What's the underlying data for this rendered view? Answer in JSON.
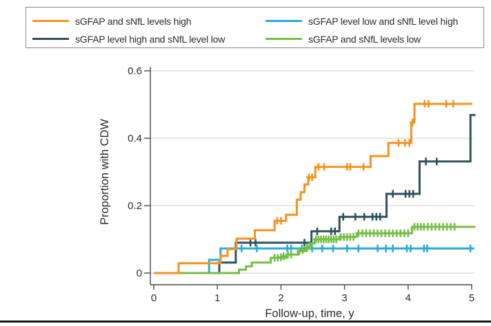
{
  "figure": {
    "background": "#ffffff",
    "bottom_rule_color": "#151515"
  },
  "legend": {
    "border_color": "#8a8a8a",
    "position": "top",
    "items": [
      {
        "label": "sGFAP and sNfL levels high",
        "color": "#F6921E"
      },
      {
        "label": "sGFAP level low and sNfL level high",
        "color": "#29A9E1"
      },
      {
        "label": "sGFAP level high and sNfL level low",
        "color": "#2F505E"
      },
      {
        "label": "sGFAP and sNfL levels low",
        "color": "#74BE44"
      }
    ]
  },
  "chart_data": {
    "type": "line",
    "subtype": "kaplan-meier-step",
    "title": "",
    "xlabel": "Follow-up, time, y",
    "ylabel": "Proportion with CDW",
    "xlim": [
      0,
      5
    ],
    "ylim": [
      0,
      0.6
    ],
    "xticks": [
      0,
      1,
      2,
      3,
      4,
      5
    ],
    "xtick_labels": [
      "0",
      "1",
      "2",
      "3",
      "4",
      "5"
    ],
    "yticks": [
      0,
      0.2,
      0.4,
      0.6
    ],
    "ytick_labels": [
      "0",
      "0.2",
      "0.4",
      "0.6"
    ],
    "grid": "horizontal",
    "grid_color": "#dedede",
    "axis_color": "#474747",
    "censor_marker": "plus",
    "series": [
      {
        "name": "sGFAP level high and sNfL level low",
        "color": "#2F505E",
        "end_x": 5.06,
        "steps": [
          [
            0,
            0
          ],
          [
            1.03,
            0.031
          ],
          [
            1.29,
            0.09
          ],
          [
            2.48,
            0.124
          ],
          [
            2.92,
            0.167
          ],
          [
            3.66,
            0.235
          ],
          [
            4.18,
            0.331
          ],
          [
            4.98,
            0.469
          ]
        ],
        "censors": [
          [
            1.52,
            0.09
          ],
          [
            1.6,
            0.09
          ],
          [
            2.37,
            0.09
          ],
          [
            2.57,
            0.124
          ],
          [
            2.79,
            0.124
          ],
          [
            2.85,
            0.124
          ],
          [
            2.98,
            0.167
          ],
          [
            3.17,
            0.167
          ],
          [
            3.31,
            0.167
          ],
          [
            3.44,
            0.167
          ],
          [
            3.5,
            0.167
          ],
          [
            3.56,
            0.167
          ],
          [
            3.76,
            0.235
          ],
          [
            3.96,
            0.235
          ],
          [
            4.02,
            0.235
          ],
          [
            4.08,
            0.235
          ],
          [
            4.28,
            0.331
          ],
          [
            4.45,
            0.331
          ]
        ]
      },
      {
        "name": "sGFAP level low and sNfL level high",
        "color": "#29A9E1",
        "end_x": 5.04,
        "steps": [
          [
            0,
            0
          ],
          [
            0.87,
            0.039
          ],
          [
            1.05,
            0.073
          ]
        ],
        "censors": [
          [
            1.38,
            0.073
          ],
          [
            1.62,
            0.073
          ],
          [
            2.1,
            0.073
          ],
          [
            2.16,
            0.073
          ],
          [
            2.33,
            0.073
          ],
          [
            2.49,
            0.073
          ],
          [
            2.65,
            0.073
          ],
          [
            2.82,
            0.073
          ],
          [
            3.04,
            0.073
          ],
          [
            3.22,
            0.073
          ],
          [
            3.52,
            0.073
          ],
          [
            3.65,
            0.073
          ],
          [
            3.76,
            0.073
          ],
          [
            3.98,
            0.073
          ],
          [
            4.04,
            0.073
          ],
          [
            4.25,
            0.073
          ],
          [
            4.3,
            0.073
          ],
          [
            4.98,
            0.073
          ]
        ]
      },
      {
        "name": "sGFAP and sNfL levels low",
        "color": "#74BE44",
        "end_x": 5.06,
        "steps": [
          [
            0,
            0
          ],
          [
            1.34,
            0.01
          ],
          [
            1.45,
            0.02
          ],
          [
            1.54,
            0.031
          ],
          [
            1.84,
            0.045
          ],
          [
            2.09,
            0.055
          ],
          [
            2.27,
            0.065
          ],
          [
            2.39,
            0.075
          ],
          [
            2.47,
            0.088
          ],
          [
            2.53,
            0.1
          ],
          [
            2.92,
            0.107
          ],
          [
            3.19,
            0.118
          ],
          [
            4.06,
            0.137
          ]
        ],
        "censors": [
          [
            1.9,
            0.045
          ],
          [
            1.95,
            0.045
          ],
          [
            2.0,
            0.047
          ],
          [
            2.04,
            0.05
          ],
          [
            2.11,
            0.055
          ],
          [
            2.16,
            0.055
          ],
          [
            2.29,
            0.065
          ],
          [
            2.34,
            0.068
          ],
          [
            2.41,
            0.075
          ],
          [
            2.45,
            0.08
          ],
          [
            2.55,
            0.1
          ],
          [
            2.59,
            0.1
          ],
          [
            2.63,
            0.1
          ],
          [
            2.67,
            0.1
          ],
          [
            2.71,
            0.1
          ],
          [
            2.75,
            0.1
          ],
          [
            2.79,
            0.1
          ],
          [
            2.83,
            0.1
          ],
          [
            2.87,
            0.1
          ],
          [
            2.94,
            0.107
          ],
          [
            2.99,
            0.107
          ],
          [
            3.04,
            0.107
          ],
          [
            3.09,
            0.107
          ],
          [
            3.14,
            0.107
          ],
          [
            3.22,
            0.118
          ],
          [
            3.28,
            0.118
          ],
          [
            3.34,
            0.118
          ],
          [
            3.4,
            0.118
          ],
          [
            3.46,
            0.118
          ],
          [
            3.52,
            0.118
          ],
          [
            3.58,
            0.118
          ],
          [
            3.64,
            0.118
          ],
          [
            3.7,
            0.118
          ],
          [
            3.76,
            0.118
          ],
          [
            3.82,
            0.118
          ],
          [
            3.88,
            0.118
          ],
          [
            3.94,
            0.118
          ],
          [
            4.0,
            0.118
          ],
          [
            4.1,
            0.137
          ],
          [
            4.15,
            0.137
          ],
          [
            4.2,
            0.137
          ],
          [
            4.25,
            0.137
          ],
          [
            4.31,
            0.137
          ],
          [
            4.37,
            0.137
          ],
          [
            4.43,
            0.137
          ],
          [
            4.49,
            0.137
          ],
          [
            4.55,
            0.137
          ],
          [
            4.61,
            0.137
          ],
          [
            4.67,
            0.137
          ],
          [
            4.73,
            0.137
          ]
        ]
      },
      {
        "name": "sGFAP and sNfL levels high",
        "color": "#F6921E",
        "end_x": 5.01,
        "steps": [
          [
            0,
            0
          ],
          [
            0.39,
            0.029
          ],
          [
            1.05,
            0.051
          ],
          [
            1.16,
            0.071
          ],
          [
            1.3,
            0.102
          ],
          [
            1.59,
            0.127
          ],
          [
            1.9,
            0.155
          ],
          [
            2.08,
            0.173
          ],
          [
            2.25,
            0.218
          ],
          [
            2.31,
            0.24
          ],
          [
            2.37,
            0.263
          ],
          [
            2.43,
            0.284
          ],
          [
            2.54,
            0.315
          ],
          [
            3.41,
            0.347
          ],
          [
            3.69,
            0.386
          ],
          [
            4.05,
            0.447
          ],
          [
            4.1,
            0.502
          ]
        ],
        "censors": [
          [
            1.94,
            0.155
          ],
          [
            2.0,
            0.155
          ],
          [
            2.44,
            0.284
          ],
          [
            2.49,
            0.284
          ],
          [
            2.59,
            0.315
          ],
          [
            2.68,
            0.315
          ],
          [
            3.04,
            0.315
          ],
          [
            3.09,
            0.315
          ],
          [
            3.3,
            0.315
          ],
          [
            3.85,
            0.386
          ],
          [
            3.95,
            0.386
          ],
          [
            4.02,
            0.386
          ],
          [
            4.07,
            0.447
          ],
          [
            4.26,
            0.502
          ],
          [
            4.32,
            0.502
          ],
          [
            4.6,
            0.502
          ],
          [
            4.71,
            0.502
          ]
        ]
      }
    ]
  }
}
